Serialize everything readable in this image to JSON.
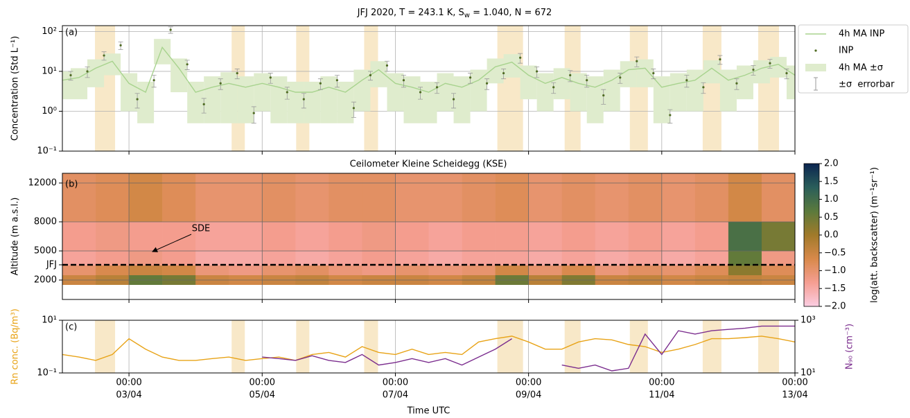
{
  "chart_data": [
    {
      "type": "line",
      "title": [
        "JFJ 2020, T = 243.1 K, S",
        "w",
        " = 1.040, N = 672"
      ],
      "panel_label": "(a)",
      "ylabel": "Concentration (Std L⁻¹)",
      "yscale": "log",
      "grid": true,
      "xlim": [
        0,
        264
      ],
      "ylim": [
        0.1,
        140
      ],
      "yticks": [
        {
          "value": 0.1,
          "label": "10⁻¹"
        },
        {
          "value": 1,
          "label": "10⁰"
        },
        {
          "value": 10,
          "label": "10¹"
        },
        {
          "value": 100,
          "label": "10²"
        }
      ],
      "shaded_periods": [
        [
          11.75,
          19
        ],
        [
          61,
          65.75
        ],
        [
          84.25,
          89
        ],
        [
          108.75,
          113.75
        ],
        [
          156.75,
          166
        ],
        [
          181,
          186.75
        ],
        [
          204.5,
          211
        ],
        [
          230.75,
          237.5
        ],
        [
          250.75,
          258.25
        ]
      ],
      "shade_color": "#f8e8c8",
      "legend": "outside-upper-right",
      "series": [
        {
          "name": "4h MA INP",
          "kind": "line",
          "color": "#a8d38e",
          "band_name": "4h MA ±σ",
          "band_color": "#dfeccd",
          "x": [
            0,
            6,
            12,
            18,
            24,
            30,
            36,
            42,
            48,
            54,
            60,
            66,
            72,
            78,
            84,
            90,
            96,
            102,
            108,
            114,
            120,
            126,
            132,
            138,
            144,
            150,
            156,
            162,
            168,
            174,
            180,
            186,
            192,
            198,
            204,
            210,
            216,
            222,
            228,
            234,
            240,
            246,
            252,
            258,
            264
          ],
          "values": [
            6,
            7,
            12,
            18,
            5,
            3,
            40,
            12,
            3,
            4,
            5,
            4,
            5,
            4,
            3,
            3,
            4,
            3,
            6,
            11,
            5,
            4,
            3,
            5,
            4,
            6,
            13,
            17,
            8,
            5,
            7,
            5,
            4,
            6,
            11,
            12,
            4,
            5,
            6,
            12,
            6,
            8,
            12,
            15,
            8
          ],
          "sigma": [
            4,
            5,
            8,
            10,
            4,
            2.5,
            25,
            9,
            2.5,
            3.5,
            4.5,
            3.5,
            4,
            3.5,
            2.5,
            2.5,
            3.5,
            2.5,
            5,
            7,
            4,
            3.5,
            2.5,
            4,
            3.5,
            5,
            8,
            10,
            6,
            4,
            5,
            4,
            3.5,
            5,
            7,
            8,
            3.5,
            4,
            5,
            7,
            5,
            6,
            7,
            8,
            6
          ]
        },
        {
          "name": "INP",
          "kind": "scatter",
          "color": "#4f6b22",
          "errorbar_name": "±σ  errorbar",
          "errorbar_color": "#9a9a9a",
          "x": [
            3,
            9,
            15,
            21,
            27,
            33,
            39,
            45,
            51,
            57,
            63,
            69,
            75,
            81,
            87,
            93,
            99,
            105,
            111,
            117,
            123,
            129,
            135,
            141,
            147,
            153,
            159,
            165,
            171,
            177,
            183,
            189,
            195,
            201,
            207,
            213,
            219,
            225,
            231,
            237,
            243,
            249,
            255,
            261
          ],
          "values": [
            8,
            10,
            25,
            45,
            2,
            6,
            110,
            15,
            1.5,
            5,
            9,
            0.9,
            7,
            3,
            2,
            5,
            6,
            1.2,
            8,
            14,
            6,
            3,
            4,
            2,
            7,
            5,
            9,
            22,
            10,
            4,
            8,
            6,
            2.5,
            7,
            18,
            9,
            0.8,
            6,
            4,
            20,
            5,
            11,
            16,
            9
          ],
          "errors": [
            2,
            3,
            6,
            10,
            0.8,
            2,
            20,
            4,
            0.6,
            1.5,
            2.5,
            0.4,
            2,
            1,
            0.8,
            1.5,
            2,
            0.5,
            2,
            4,
            2,
            1,
            1.2,
            0.8,
            2,
            1.5,
            2.5,
            6,
            3,
            1.2,
            2.5,
            2,
            1,
            2,
            5,
            2.5,
            0.3,
            2,
            1.2,
            5,
            1.5,
            3,
            4,
            2.5
          ]
        }
      ]
    },
    {
      "type": "heatmap",
      "title": "Ceilometer Kleine Scheidegg (KSE)",
      "panel_label": "(b)",
      "ylabel": "Altitude (m a.s.l.)",
      "grid": true,
      "xlim": [
        0,
        264
      ],
      "ylim": [
        0,
        13000
      ],
      "yticks": [
        2000,
        {
          "value": 3571,
          "label": "JFJ"
        },
        5000,
        8000,
        12000
      ],
      "reference_line": 1,
      "annotation": "SDE",
      "x_edges": [
        0,
        12,
        24,
        36,
        48,
        60,
        72,
        84,
        96,
        108,
        120,
        132,
        144,
        156,
        168,
        180,
        192,
        204,
        216,
        228,
        240,
        252,
        264
      ],
      "y_edges": [
        1500,
        2500,
        3500,
        5000,
        8000,
        13000
      ],
      "z": [
        [
          -0.5,
          -0.3,
          0.6,
          0.4,
          -0.5,
          -0.6,
          -0.5,
          -0.4,
          -0.6,
          -0.5,
          -0.5,
          -0.6,
          -0.4,
          0.5,
          -0.3,
          0.3,
          -0.5,
          -0.4,
          -0.6,
          -0.5,
          -0.4,
          -0.5
        ],
        [
          -1.0,
          -0.7,
          -0.5,
          -0.6,
          -1.1,
          -1.2,
          -1.0,
          -0.9,
          -1.1,
          -1.2,
          -1.0,
          -1.1,
          -1.0,
          -0.6,
          -1.0,
          -0.7,
          -1.1,
          -0.9,
          -1.0,
          -0.8,
          0.2,
          -0.8
        ],
        [
          -1.4,
          -1.3,
          -1.2,
          -1.3,
          -1.5,
          -1.5,
          -1.4,
          -1.5,
          -1.4,
          -1.3,
          -1.4,
          -1.5,
          -1.4,
          -1.4,
          -1.5,
          -1.4,
          -1.5,
          -1.4,
          -1.5,
          -1.4,
          0.6,
          -1.2
        ],
        [
          -1.3,
          -1.2,
          -1.3,
          -1.3,
          -1.4,
          -1.4,
          -1.3,
          -1.4,
          -1.3,
          -1.2,
          -1.3,
          -1.4,
          -1.3,
          -1.3,
          -1.4,
          -1.3,
          -1.4,
          -1.3,
          -1.4,
          -1.3,
          0.9,
          0.4
        ],
        [
          -0.9,
          -0.8,
          -0.6,
          -0.8,
          -1.0,
          -1.0,
          -0.9,
          -1.0,
          -0.9,
          -0.9,
          -1.0,
          -1.0,
          -0.9,
          -0.8,
          -1.0,
          -0.9,
          -1.0,
          -0.9,
          -1.0,
          -0.9,
          -0.6,
          -0.9
        ]
      ],
      "clim": [
        -2,
        2
      ],
      "colormap": [
        "#fbcde2",
        "#f59e92",
        "#d8894a",
        "#a07a2a",
        "#5b7a3c",
        "#2a5e5a",
        "#0b2550"
      ],
      "clabel": "log(att. backscatter) (m⁻¹sr⁻¹)",
      "cticks": [
        {
          "value": -2,
          "label": "−2.0"
        },
        {
          "value": -1.5,
          "label": "−1.5"
        },
        {
          "value": -1,
          "label": "−1.0"
        },
        {
          "value": -0.5,
          "label": "−0.5"
        },
        {
          "value": 0,
          "label": "0.0"
        },
        0.5,
        {
          "value": 1,
          "label": "1.0"
        },
        1.5,
        {
          "value": 2,
          "label": "2.0"
        }
      ]
    },
    {
      "type": "line",
      "panel_label": "(c)",
      "ylabel": "Rn conc. (Bq/m³)",
      "y2label": "N₉₀ (cm⁻³)",
      "xlabel": "Time UTC",
      "yscale": "log",
      "y2scale": "log",
      "xlim": [
        0,
        264
      ],
      "xticks": [
        {
          "value": 24,
          "label": "00:00",
          "date": "03/04"
        },
        {
          "value": 72,
          "label": "00:00",
          "date": "05/04"
        },
        {
          "value": 120,
          "label": "00:00",
          "date": "07/04"
        },
        {
          "value": 168,
          "label": "00:00",
          "date": "09/04"
        },
        {
          "value": 216,
          "label": "00:00",
          "date": "11/04"
        },
        {
          "value": 264,
          "label": "00:00",
          "date": "13/04"
        }
      ],
      "ylim": [
        0.1,
        10
      ],
      "yticks": [
        {
          "value": 0.1,
          "label": "10⁻¹"
        },
        {
          "value": 10,
          "label": "10¹"
        }
      ],
      "y2lim": [
        10,
        1000
      ],
      "y2ticks": [
        {
          "value": 10,
          "label": "10¹"
        },
        {
          "value": 1000,
          "label": "10³"
        }
      ],
      "series": [
        {
          "kind": "line",
          "color": "#e8a317",
          "x": [
            0,
            6,
            12,
            18,
            24,
            30,
            36,
            42,
            48,
            54,
            60,
            66,
            72,
            78,
            84,
            90,
            96,
            102,
            108,
            114,
            120,
            126,
            132,
            138,
            144,
            150,
            156,
            162,
            168,
            174,
            180,
            186,
            192,
            198,
            204,
            210,
            216,
            222,
            228,
            234,
            240,
            246,
            252,
            258,
            264
          ],
          "values": [
            0.5,
            0.4,
            0.3,
            0.5,
            2,
            0.8,
            0.4,
            0.3,
            0.3,
            0.35,
            0.4,
            0.3,
            0.35,
            0.4,
            0.3,
            0.5,
            0.6,
            0.4,
            1,
            0.6,
            0.5,
            0.8,
            0.5,
            0.6,
            0.5,
            1.5,
            2,
            2.5,
            1.5,
            0.8,
            0.8,
            1.5,
            2,
            1.8,
            1.2,
            1,
            0.6,
            0.8,
            1.2,
            2,
            2,
            2.2,
            2.5,
            2,
            1.5
          ]
        },
        {
          "kind": "line",
          "color": "#7b2d8e",
          "axis": "y2",
          "x": [
            0,
            6,
            12,
            18,
            24,
            30,
            36,
            42,
            48,
            54,
            60,
            66,
            72,
            78,
            84,
            90,
            96,
            102,
            108,
            114,
            120,
            126,
            132,
            138,
            144,
            150,
            156,
            162,
            168,
            174,
            180,
            186,
            192,
            198,
            204,
            210,
            216,
            222,
            228,
            234,
            240,
            246,
            252,
            258,
            264
          ],
          "values": [
            null,
            null,
            null,
            null,
            null,
            null,
            null,
            null,
            null,
            null,
            null,
            null,
            40,
            35,
            30,
            45,
            30,
            25,
            50,
            20,
            25,
            35,
            25,
            35,
            20,
            40,
            80,
            200,
            null,
            null,
            20,
            15,
            20,
            12,
            15,
            300,
            50,
            400,
            300,
            400,
            450,
            500,
            600,
            600,
            600
          ]
        }
      ]
    }
  ]
}
